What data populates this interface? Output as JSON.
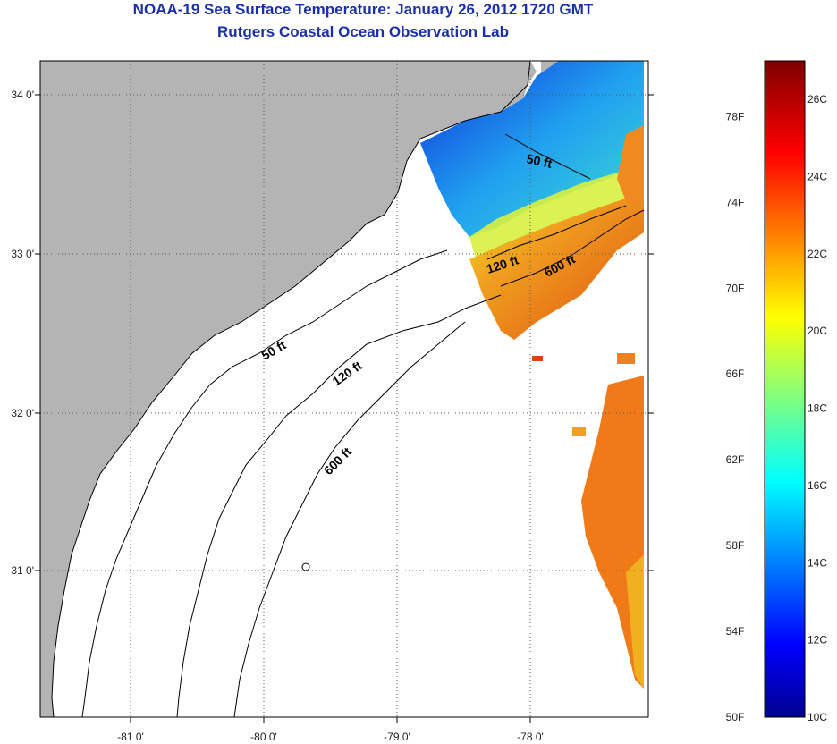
{
  "title": "NOAA-19 Sea Surface Temperature:  January 26, 2012 1720 GMT",
  "subtitle": "Rutgers Coastal Ocean Observation Lab",
  "map": {
    "lon_ticks": [
      "-81 0'",
      "-80 0'",
      "-79 0'",
      "-78 0'"
    ],
    "lat_ticks": [
      "34 0'",
      "33 0'",
      "32 0'",
      "31 0'"
    ],
    "contour_labels": [
      "50 ft",
      "120 ft",
      "600 ft",
      "50 ft",
      "120 ft",
      "600 ft"
    ],
    "colors": {
      "land": "#b4b4b4",
      "ocean": "#ffffff",
      "grid": "#555555"
    }
  },
  "colorbar": {
    "fahrenheit": [
      "78F",
      "74F",
      "70F",
      "66F",
      "62F",
      "58F",
      "54F",
      "50F"
    ],
    "celsius": [
      "26C",
      "24C",
      "22C",
      "20C",
      "18C",
      "16C",
      "14C",
      "12C",
      "10C"
    ],
    "range_c": [
      10,
      27
    ],
    "colormap": "jet"
  }
}
